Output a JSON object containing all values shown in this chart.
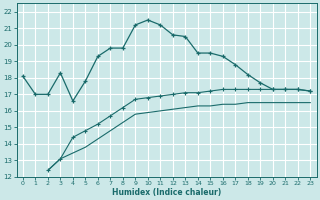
{
  "xlabel": "Humidex (Indice chaleur)",
  "bg_color": "#cce8e8",
  "line_color": "#1a6b6b",
  "grid_color": "#b8d8d8",
  "xlim": [
    -0.5,
    23.5
  ],
  "ylim": [
    12,
    22.5
  ],
  "xticks": [
    0,
    1,
    2,
    3,
    4,
    5,
    6,
    7,
    8,
    9,
    10,
    11,
    12,
    13,
    14,
    15,
    16,
    17,
    18,
    19,
    20,
    21,
    22,
    23
  ],
  "yticks": [
    12,
    13,
    14,
    15,
    16,
    17,
    18,
    19,
    20,
    21,
    22
  ],
  "curve1_x": [
    0,
    1,
    2,
    3,
    4,
    5,
    6,
    7,
    8,
    9,
    10,
    11,
    12,
    13,
    14,
    15,
    16,
    17,
    18,
    19,
    20,
    21,
    22,
    23
  ],
  "curve1_y": [
    18.1,
    17.0,
    17.0,
    18.3,
    16.6,
    17.8,
    19.3,
    19.8,
    19.8,
    21.2,
    21.5,
    21.2,
    20.6,
    20.5,
    19.5,
    19.5,
    19.3,
    18.8,
    18.2,
    17.7,
    17.3,
    17.3,
    17.3,
    17.2
  ],
  "curve2_x": [
    2,
    3,
    4,
    5,
    6,
    7,
    8,
    9,
    10,
    11,
    12,
    13,
    14,
    15,
    16,
    17,
    18,
    19,
    20,
    21,
    22,
    23
  ],
  "curve2_y": [
    12.4,
    13.1,
    14.4,
    14.8,
    15.2,
    15.7,
    16.2,
    16.7,
    16.8,
    16.9,
    17.0,
    17.1,
    17.1,
    17.2,
    17.3,
    17.3,
    17.3,
    17.3,
    17.3,
    17.3,
    17.3,
    17.2
  ],
  "curve3_x": [
    2,
    3,
    5,
    6,
    7,
    8,
    9,
    10,
    11,
    12,
    13,
    14,
    15,
    16,
    17,
    18,
    19,
    20,
    21,
    22,
    23
  ],
  "curve3_y": [
    12.4,
    13.1,
    13.8,
    14.3,
    14.8,
    15.3,
    15.8,
    15.9,
    16.0,
    16.1,
    16.2,
    16.3,
    16.3,
    16.4,
    16.4,
    16.5,
    16.5,
    16.5,
    16.5,
    16.5,
    16.5
  ]
}
